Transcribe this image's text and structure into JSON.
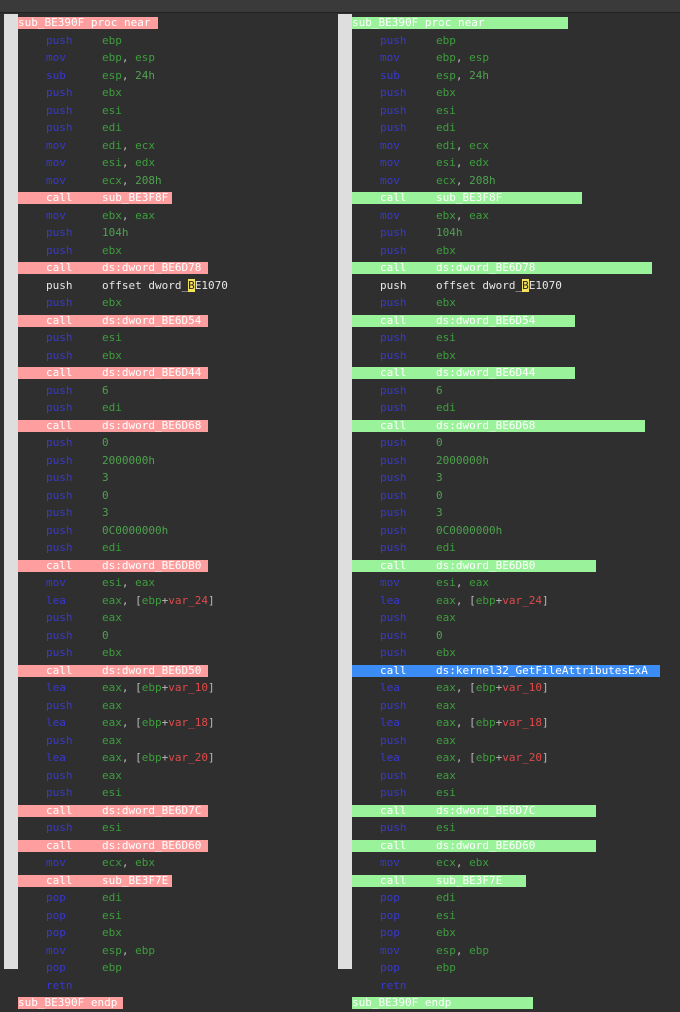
{
  "colors": {
    "removed": "#ff9e9e",
    "added": "#9af29a",
    "selected": "#3b8cf5",
    "background": "#2f2f2f",
    "gutter": "#dedede"
  },
  "left": {
    "lines": [
      {
        "kind": "label",
        "text": "sub_BE390F proc near",
        "hl": "red",
        "w": 140
      },
      {
        "m": "push",
        "o": "ebp"
      },
      {
        "m": "mov",
        "o": "ebp, esp"
      },
      {
        "m": "sub",
        "o": "esp, 24h"
      },
      {
        "m": "push",
        "o": "ebx"
      },
      {
        "m": "push",
        "o": "esi"
      },
      {
        "m": "push",
        "o": "edi"
      },
      {
        "m": "mov",
        "o": "edi, ecx"
      },
      {
        "m": "mov",
        "o": "esi, edx"
      },
      {
        "m": "mov",
        "o": "ecx, 208h"
      },
      {
        "m": "call",
        "o": "sub_BE3F8F",
        "hl": "red",
        "w": 154
      },
      {
        "m": "mov",
        "o": "ebx, eax"
      },
      {
        "m": "push",
        "o": "104h"
      },
      {
        "m": "push",
        "o": "ebx"
      },
      {
        "m": "call",
        "o": "ds:dword_BE6D78",
        "hl": "red",
        "w": 190
      },
      {
        "m": "push",
        "o": "offset dword_BE1070",
        "plain": true,
        "cur": "B"
      },
      {
        "m": "push",
        "o": "ebx"
      },
      {
        "m": "call",
        "o": "ds:dword_BE6D54",
        "hl": "red",
        "w": 190
      },
      {
        "m": "push",
        "o": "esi"
      },
      {
        "m": "push",
        "o": "ebx"
      },
      {
        "m": "call",
        "o": "ds:dword_BE6D44",
        "hl": "red",
        "w": 190
      },
      {
        "m": "push",
        "o": "6"
      },
      {
        "m": "push",
        "o": "edi"
      },
      {
        "m": "call",
        "o": "ds:dword_BE6D68",
        "hl": "red",
        "w": 190
      },
      {
        "m": "push",
        "o": "0"
      },
      {
        "m": "push",
        "o": "2000000h"
      },
      {
        "m": "push",
        "o": "3"
      },
      {
        "m": "push",
        "o": "0"
      },
      {
        "m": "push",
        "o": "3"
      },
      {
        "m": "push",
        "o": "0C0000000h"
      },
      {
        "m": "push",
        "o": "edi"
      },
      {
        "m": "call",
        "o": "ds:dword_BE6DB0",
        "hl": "red",
        "w": 190
      },
      {
        "m": "mov",
        "o": "esi, eax"
      },
      {
        "m": "lea",
        "o": "eax, [ebp+var_24]"
      },
      {
        "m": "push",
        "o": "eax"
      },
      {
        "m": "push",
        "o": "0"
      },
      {
        "m": "push",
        "o": "ebx"
      },
      {
        "m": "call",
        "o": "ds:dword_BE6D50",
        "hl": "red",
        "w": 190
      },
      {
        "m": "lea",
        "o": "eax, [ebp+var_10]"
      },
      {
        "m": "push",
        "o": "eax"
      },
      {
        "m": "lea",
        "o": "eax, [ebp+var_18]"
      },
      {
        "m": "push",
        "o": "eax"
      },
      {
        "m": "lea",
        "o": "eax, [ebp+var_20]"
      },
      {
        "m": "push",
        "o": "eax"
      },
      {
        "m": "push",
        "o": "esi"
      },
      {
        "m": "call",
        "o": "ds:dword_BE6D7C",
        "hl": "red",
        "w": 190
      },
      {
        "m": "push",
        "o": "esi"
      },
      {
        "m": "call",
        "o": "ds:dword_BE6D60",
        "hl": "red",
        "w": 190
      },
      {
        "m": "mov",
        "o": "ecx, ebx"
      },
      {
        "m": "call",
        "o": "sub_BE3F7E",
        "hl": "red",
        "w": 154
      },
      {
        "m": "pop",
        "o": "edi"
      },
      {
        "m": "pop",
        "o": "esi"
      },
      {
        "m": "pop",
        "o": "ebx"
      },
      {
        "m": "mov",
        "o": "esp, ebp"
      },
      {
        "m": "pop",
        "o": "ebp"
      },
      {
        "m": "retn",
        "o": ""
      },
      {
        "kind": "label",
        "text": "sub_BE390F endp",
        "hl": "red",
        "w": 105
      }
    ]
  },
  "right": {
    "lines": [
      {
        "kind": "label",
        "text": "sub_BE390F proc near",
        "hl": "green",
        "w": 216
      },
      {
        "m": "push",
        "o": "ebp"
      },
      {
        "m": "mov",
        "o": "ebp, esp"
      },
      {
        "m": "sub",
        "o": "esp, 24h"
      },
      {
        "m": "push",
        "o": "ebx"
      },
      {
        "m": "push",
        "o": "esi"
      },
      {
        "m": "push",
        "o": "edi"
      },
      {
        "m": "mov",
        "o": "edi, ecx"
      },
      {
        "m": "mov",
        "o": "esi, edx"
      },
      {
        "m": "mov",
        "o": "ecx, 208h"
      },
      {
        "m": "call",
        "o": "sub_BE3F8F",
        "hl": "green",
        "w": 230
      },
      {
        "m": "mov",
        "o": "ebx, eax"
      },
      {
        "m": "push",
        "o": "104h"
      },
      {
        "m": "push",
        "o": "ebx"
      },
      {
        "m": "call",
        "o": "ds:dword_BE6D78",
        "hl": "green",
        "w": 300
      },
      {
        "m": "push",
        "o": "offset dword_BE1070",
        "plain": true,
        "cur": "B"
      },
      {
        "m": "push",
        "o": "ebx"
      },
      {
        "m": "call",
        "o": "ds:dword_BE6D54",
        "hl": "green",
        "w": 223
      },
      {
        "m": "push",
        "o": "esi"
      },
      {
        "m": "push",
        "o": "ebx"
      },
      {
        "m": "call",
        "o": "ds:dword_BE6D44",
        "hl": "green",
        "w": 223
      },
      {
        "m": "push",
        "o": "6"
      },
      {
        "m": "push",
        "o": "edi"
      },
      {
        "m": "call",
        "o": "ds:dword_BE6D68",
        "hl": "green",
        "w": 293
      },
      {
        "m": "push",
        "o": "0"
      },
      {
        "m": "push",
        "o": "2000000h"
      },
      {
        "m": "push",
        "o": "3"
      },
      {
        "m": "push",
        "o": "0"
      },
      {
        "m": "push",
        "o": "3"
      },
      {
        "m": "push",
        "o": "0C0000000h"
      },
      {
        "m": "push",
        "o": "edi"
      },
      {
        "m": "call",
        "o": "ds:dword_BE6DB0",
        "hl": "green",
        "w": 244
      },
      {
        "m": "mov",
        "o": "esi, eax"
      },
      {
        "m": "lea",
        "o": "eax, [ebp+var_24]"
      },
      {
        "m": "push",
        "o": "eax"
      },
      {
        "m": "push",
        "o": "0"
      },
      {
        "m": "push",
        "o": "ebx"
      },
      {
        "m": "call",
        "o": "ds:kernel32_GetFileAttributesExA",
        "hl": "blue",
        "w": 308,
        "selected": true
      },
      {
        "m": "lea",
        "o": "eax, [ebp+var_10]"
      },
      {
        "m": "push",
        "o": "eax"
      },
      {
        "m": "lea",
        "o": "eax, [ebp+var_18]"
      },
      {
        "m": "push",
        "o": "eax"
      },
      {
        "m": "lea",
        "o": "eax, [ebp+var_20]"
      },
      {
        "m": "push",
        "o": "eax"
      },
      {
        "m": "push",
        "o": "esi"
      },
      {
        "m": "call",
        "o": "ds:dword_BE6D7C",
        "hl": "green",
        "w": 244
      },
      {
        "m": "push",
        "o": "esi"
      },
      {
        "m": "call",
        "o": "ds:dword_BE6D60",
        "hl": "green",
        "w": 244
      },
      {
        "m": "mov",
        "o": "ecx, ebx"
      },
      {
        "m": "call",
        "o": "sub_BE3F7E",
        "hl": "green",
        "w": 174
      },
      {
        "m": "pop",
        "o": "edi"
      },
      {
        "m": "pop",
        "o": "esi"
      },
      {
        "m": "pop",
        "o": "ebx"
      },
      {
        "m": "mov",
        "o": "esp, ebp"
      },
      {
        "m": "pop",
        "o": "ebp"
      },
      {
        "m": "retn",
        "o": ""
      },
      {
        "kind": "label",
        "text": "sub_BE390F endp",
        "hl": "green",
        "w": 181
      }
    ]
  }
}
